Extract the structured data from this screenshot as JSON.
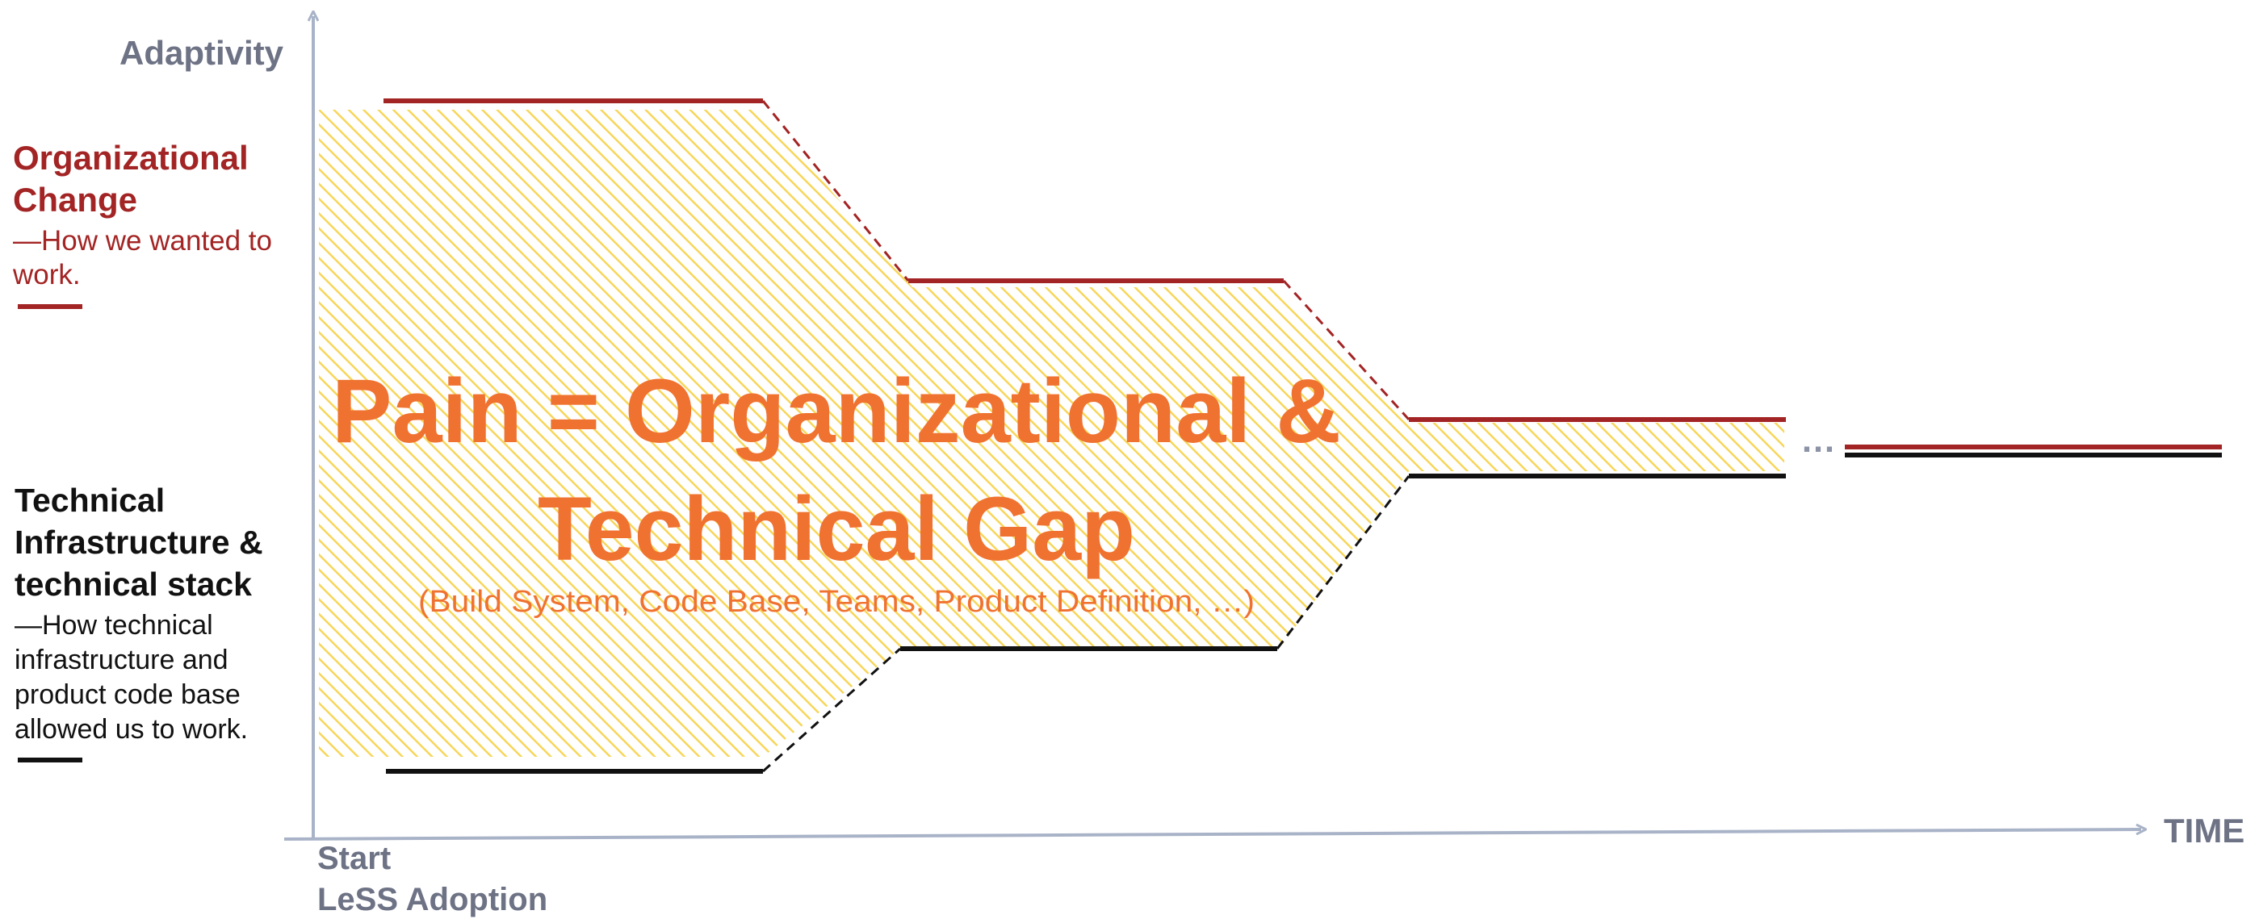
{
  "axes": {
    "y_label": "Adaptivity",
    "x_label": "TIME",
    "origin_label_line1": "Start",
    "origin_label_line2": "LeSS Adoption",
    "axis_color": "#a9b3c8",
    "label_color": "#6d7285"
  },
  "legend": {
    "organizational": {
      "title_line1": "Organizational",
      "title_line2": "Change",
      "desc_line1": "—How we wanted to",
      "desc_line2": "work.",
      "color": "#a32424"
    },
    "technical": {
      "title_line1": "Technical",
      "title_line2": "Infrastructure &",
      "title_line3": "technical stack",
      "desc_line1": "—How technical",
      "desc_line2": "infrastructure and",
      "desc_line3": "product code base",
      "desc_line4": "allowed us to work.",
      "color": "#111111"
    }
  },
  "gap": {
    "title_line1": "Pain = Organizational &",
    "title_line2": "Technical Gap",
    "subtitle": "(Build System, Code Base, Teams, Product Definition, …)",
    "text_color": "#f07230",
    "hatch_color": "#f7d65a"
  },
  "continuation": "…"
}
